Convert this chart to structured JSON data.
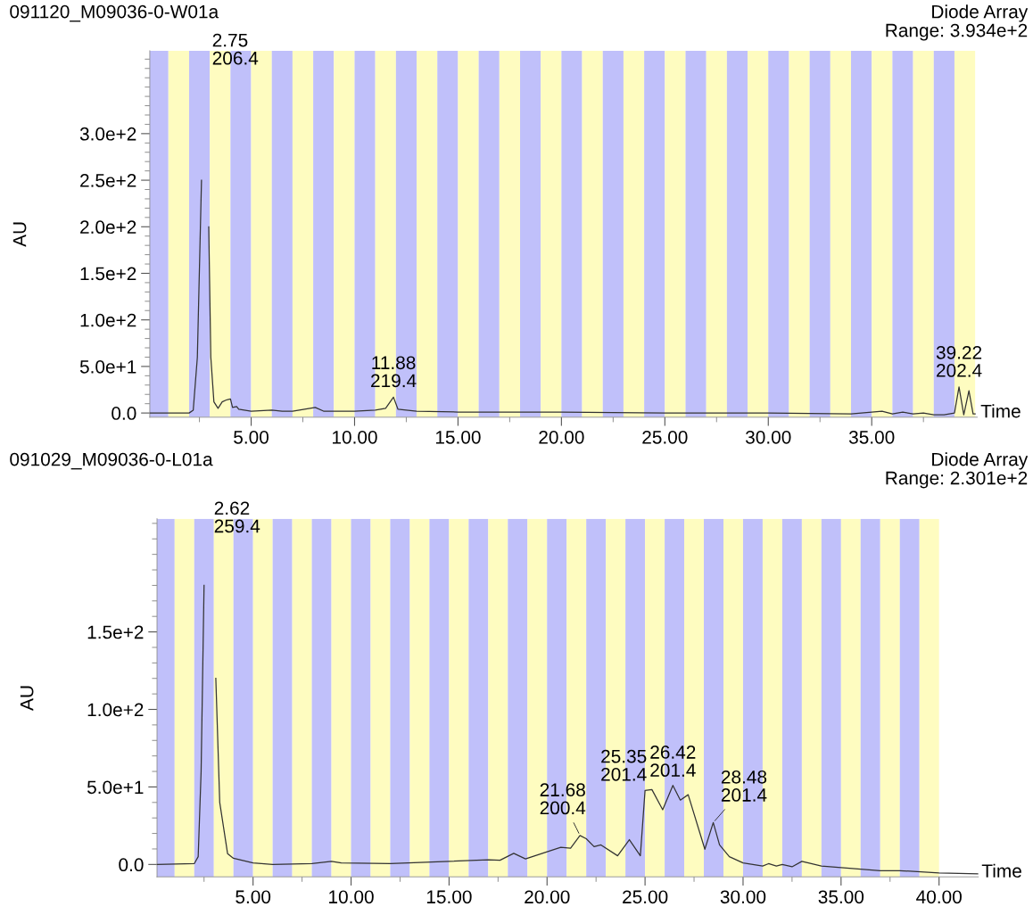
{
  "chart_data": [
    {
      "type": "line",
      "title": "091120_M09036-0-W01a",
      "subtitle": "Diode Array\nRange: 3.934e+2",
      "xlabel": "Time",
      "ylabel": "AU",
      "xlim": [
        0.1,
        40.1
      ],
      "ylim": [
        -4.5,
        389
      ],
      "xticks": [
        {
          "value": 2.5,
          "label": null
        },
        {
          "value": 5,
          "label": "5.00"
        },
        {
          "value": 7.5,
          "label": null
        },
        {
          "value": 10,
          "label": "10.00"
        },
        {
          "value": 12.5,
          "label": null
        },
        {
          "value": 15,
          "label": "15.00"
        },
        {
          "value": 17.5,
          "label": null
        },
        {
          "value": 20,
          "label": "20.00"
        },
        {
          "value": 22.5,
          "label": null
        },
        {
          "value": 25,
          "label": "25.00"
        },
        {
          "value": 27.5,
          "label": null
        },
        {
          "value": 30,
          "label": "30.00"
        },
        {
          "value": 32.5,
          "label": null
        },
        {
          "value": 35,
          "label": "35.00"
        },
        {
          "value": 37.5,
          "label": null
        }
      ],
      "yticks": [
        {
          "value": 0,
          "label": "0.0"
        },
        {
          "value": 50,
          "label": "5.0e+1"
        },
        {
          "value": 100,
          "label": "1.0e+2"
        },
        {
          "value": 150,
          "label": "1.5e+2"
        },
        {
          "value": 200,
          "label": "2.0e+2"
        },
        {
          "value": 250,
          "label": "2.5e+2"
        },
        {
          "value": 300,
          "label": "3.0e+2"
        },
        {
          "value": 10,
          "label": null
        },
        {
          "value": 20,
          "label": null
        },
        {
          "value": 30,
          "label": null
        },
        {
          "value": 40,
          "label": null
        },
        {
          "value": 60,
          "label": null
        },
        {
          "value": 70,
          "label": null
        },
        {
          "value": 80,
          "label": null
        },
        {
          "value": 90,
          "label": null
        },
        {
          "value": 110,
          "label": null
        },
        {
          "value": 120,
          "label": null
        },
        {
          "value": 130,
          "label": null
        },
        {
          "value": 140,
          "label": null
        },
        {
          "value": 160,
          "label": null
        },
        {
          "value": 170,
          "label": null
        },
        {
          "value": 180,
          "label": null
        },
        {
          "value": 190,
          "label": null
        },
        {
          "value": 210,
          "label": null
        },
        {
          "value": 220,
          "label": null
        },
        {
          "value": 230,
          "label": null
        },
        {
          "value": 240,
          "label": null
        },
        {
          "value": 260,
          "label": null
        },
        {
          "value": 270,
          "label": null
        },
        {
          "value": 280,
          "label": null
        },
        {
          "value": 290,
          "label": null
        },
        {
          "value": 310,
          "label": null
        },
        {
          "value": 320,
          "label": null
        },
        {
          "value": 330,
          "label": null
        },
        {
          "value": 340,
          "label": null
        },
        {
          "value": 350,
          "label": null
        },
        {
          "value": 360,
          "label": null
        },
        {
          "value": 370,
          "label": null
        },
        {
          "value": 380,
          "label": null
        }
      ],
      "series": [
        {
          "color": "#333333",
          "x": [
            0.1,
            2.0,
            2.2,
            2.4,
            2.6,
            2.75,
            2.85,
            2.95,
            3.05,
            3.2,
            3.4,
            3.6,
            3.8,
            4.0,
            4.1,
            4.3,
            4.4,
            5.0,
            6.0,
            6.5,
            7.0,
            8.1,
            8.5,
            9.0,
            10.0,
            11.0,
            11.5,
            11.88,
            12.1,
            13.0,
            15.0,
            20.0,
            25.0,
            30.0,
            34.0,
            35.5,
            36.0,
            36.5,
            37.0,
            37.5,
            38.0,
            38.5,
            39.0,
            39.22,
            39.45,
            39.7,
            39.9,
            40.0
          ],
          "values": [
            0,
            0,
            3,
            60,
            250,
            null,
            null,
            200,
            60,
            12,
            5,
            12,
            14,
            15,
            6,
            7,
            4,
            2,
            3,
            2,
            2,
            6,
            2,
            2,
            2,
            3,
            5,
            17,
            4,
            2,
            1,
            1,
            0,
            0,
            -1,
            2,
            -1,
            1,
            -1,
            0,
            -2,
            -2,
            0,
            28,
            -2,
            24,
            -1,
            -1
          ]
        }
      ],
      "annotations": [
        {
          "text": "2.75\n206.4",
          "x": 2.75,
          "y": 389
        },
        {
          "text": "11.88\n219.4",
          "x": 11.88,
          "y": 17
        },
        {
          "text": "39.22\n202.4",
          "x": 39.22,
          "y": 28
        }
      ],
      "bands": [
        {
          "axis": "x",
          "from": 0,
          "to": 1,
          "color": "#c0c0fa"
        },
        {
          "axis": "x",
          "from": 1,
          "to": 2,
          "color": "#fefcc0"
        },
        {
          "axis": "x",
          "from": 2,
          "to": 3,
          "color": "#c0c0fa"
        },
        {
          "axis": "x",
          "from": 3,
          "to": 4,
          "color": "#fefcc0"
        },
        {
          "axis": "x",
          "from": 4,
          "to": 5,
          "color": "#c0c0fa"
        },
        {
          "axis": "x",
          "from": 5,
          "to": 6,
          "color": "#fefcc0"
        },
        {
          "axis": "x",
          "from": 6,
          "to": 7,
          "color": "#c0c0fa"
        },
        {
          "axis": "x",
          "from": 7,
          "to": 8,
          "color": "#fefcc0"
        },
        {
          "axis": "x",
          "from": 8,
          "to": 9,
          "color": "#c0c0fa"
        },
        {
          "axis": "x",
          "from": 9,
          "to": 10,
          "color": "#fefcc0"
        },
        {
          "axis": "x",
          "from": 10,
          "to": 11,
          "color": "#c0c0fa"
        },
        {
          "axis": "x",
          "from": 11,
          "to": 12,
          "color": "#fefcc0"
        },
        {
          "axis": "x",
          "from": 12,
          "to": 13,
          "color": "#c0c0fa"
        },
        {
          "axis": "x",
          "from": 13,
          "to": 14,
          "color": "#fefcc0"
        },
        {
          "axis": "x",
          "from": 14,
          "to": 15,
          "color": "#c0c0fa"
        },
        {
          "axis": "x",
          "from": 15,
          "to": 16,
          "color": "#fefcc0"
        },
        {
          "axis": "x",
          "from": 16,
          "to": 17,
          "color": "#c0c0fa"
        },
        {
          "axis": "x",
          "from": 17,
          "to": 18,
          "color": "#fefcc0"
        },
        {
          "axis": "x",
          "from": 18,
          "to": 19,
          "color": "#c0c0fa"
        },
        {
          "axis": "x",
          "from": 19,
          "to": 20,
          "color": "#fefcc0"
        },
        {
          "axis": "x",
          "from": 20,
          "to": 21,
          "color": "#c0c0fa"
        },
        {
          "axis": "x",
          "from": 21,
          "to": 22,
          "color": "#fefcc0"
        },
        {
          "axis": "x",
          "from": 22,
          "to": 23,
          "color": "#c0c0fa"
        },
        {
          "axis": "x",
          "from": 23,
          "to": 24,
          "color": "#fefcc0"
        },
        {
          "axis": "x",
          "from": 24,
          "to": 25,
          "color": "#c0c0fa"
        },
        {
          "axis": "x",
          "from": 25,
          "to": 26,
          "color": "#fefcc0"
        },
        {
          "axis": "x",
          "from": 26,
          "to": 27,
          "color": "#c0c0fa"
        },
        {
          "axis": "x",
          "from": 27,
          "to": 28,
          "color": "#fefcc0"
        },
        {
          "axis": "x",
          "from": 28,
          "to": 29,
          "color": "#c0c0fa"
        },
        {
          "axis": "x",
          "from": 29,
          "to": 30,
          "color": "#fefcc0"
        },
        {
          "axis": "x",
          "from": 30,
          "to": 31,
          "color": "#c0c0fa"
        },
        {
          "axis": "x",
          "from": 31,
          "to": 32,
          "color": "#fefcc0"
        },
        {
          "axis": "x",
          "from": 32,
          "to": 33,
          "color": "#c0c0fa"
        },
        {
          "axis": "x",
          "from": 33,
          "to": 34,
          "color": "#fefcc0"
        },
        {
          "axis": "x",
          "from": 34,
          "to": 35,
          "color": "#c0c0fa"
        },
        {
          "axis": "x",
          "from": 35,
          "to": 36,
          "color": "#fefcc0"
        },
        {
          "axis": "x",
          "from": 36,
          "to": 37,
          "color": "#c0c0fa"
        },
        {
          "axis": "x",
          "from": 37,
          "to": 38,
          "color": "#fefcc0"
        },
        {
          "axis": "x",
          "from": 38,
          "to": 39,
          "color": "#c0c0fa"
        },
        {
          "axis": "x",
          "from": 39,
          "to": 40,
          "color": "#fefcc0"
        }
      ]
    },
    {
      "type": "line",
      "title": "091029_M09036-0-L01a",
      "subtitle": "Diode Array\nRange: 2.301e+2",
      "xlabel": "Time",
      "ylabel": "AU",
      "xlim": [
        0.1,
        42
      ],
      "ylim": [
        -8,
        223
      ],
      "xticks": [
        {
          "value": 2.5,
          "label": null
        },
        {
          "value": 5,
          "label": "5.00"
        },
        {
          "value": 7.5,
          "label": null
        },
        {
          "value": 10,
          "label": "10.00"
        },
        {
          "value": 12.5,
          "label": null
        },
        {
          "value": 15,
          "label": "15.00"
        },
        {
          "value": 17.5,
          "label": null
        },
        {
          "value": 20,
          "label": "20.00"
        },
        {
          "value": 22.5,
          "label": null
        },
        {
          "value": 25,
          "label": "25.00"
        },
        {
          "value": 27.5,
          "label": null
        },
        {
          "value": 30,
          "label": "30.00"
        },
        {
          "value": 32.5,
          "label": null
        },
        {
          "value": 35,
          "label": "35.00"
        },
        {
          "value": 37.5,
          "label": null
        },
        {
          "value": 40,
          "label": "40.00"
        }
      ],
      "yticks": [
        {
          "value": 0,
          "label": "0.0"
        },
        {
          "value": 50,
          "label": "5.0e+1"
        },
        {
          "value": 100,
          "label": "1.0e+2"
        },
        {
          "value": 150,
          "label": "1.5e+2"
        },
        {
          "value": 10,
          "label": null
        },
        {
          "value": 20,
          "label": null
        },
        {
          "value": 30,
          "label": null
        },
        {
          "value": 40,
          "label": null
        },
        {
          "value": 60,
          "label": null
        },
        {
          "value": 70,
          "label": null
        },
        {
          "value": 80,
          "label": null
        },
        {
          "value": 90,
          "label": null
        },
        {
          "value": 110,
          "label": null
        },
        {
          "value": 120,
          "label": null
        },
        {
          "value": 130,
          "label": null
        },
        {
          "value": 140,
          "label": null
        },
        {
          "value": 160,
          "label": null
        },
        {
          "value": 170,
          "label": null
        },
        {
          "value": 180,
          "label": null
        },
        {
          "value": 190,
          "label": null
        },
        {
          "value": 200,
          "label": null
        },
        {
          "value": 210,
          "label": null
        },
        {
          "value": 220,
          "label": null
        }
      ],
      "series": [
        {
          "color": "#333333",
          "x": [
            0.1,
            2.0,
            2.2,
            2.35,
            2.5,
            2.62,
            2.9,
            3.1,
            3.3,
            3.7,
            4.0,
            5.0,
            6.0,
            8.0,
            9.0,
            9.5,
            12.0,
            15.0,
            17.0,
            17.6,
            18.3,
            18.9,
            19.9,
            20.7,
            21.2,
            21.68,
            22.0,
            22.4,
            22.75,
            23.6,
            24.2,
            24.76,
            25.0,
            25.35,
            25.9,
            26.42,
            26.8,
            27.2,
            28.05,
            28.48,
            28.8,
            29.3,
            30.0,
            31.0,
            31.3,
            31.7,
            32.0,
            32.5,
            33.0,
            34.0,
            35.0,
            36.0,
            37.0,
            38.0,
            40.0,
            42.0
          ],
          "values": [
            0,
            0.5,
            5,
            60,
            180,
            null,
            null,
            120,
            40,
            7,
            4,
            1,
            0,
            0.5,
            2,
            1,
            0.5,
            2,
            3,
            2.7,
            7.2,
            3.6,
            7.8,
            11,
            10.5,
            18.7,
            16.6,
            11.5,
            12.6,
            5.6,
            16,
            5.6,
            47.7,
            48.3,
            35.3,
            51,
            41.5,
            45,
            9.8,
            27,
            12.6,
            5,
            1,
            -1,
            0.5,
            -1,
            0,
            -1.5,
            2,
            -1,
            -2,
            -3,
            -4,
            -4,
            -5.5,
            -6
          ]
        }
      ],
      "annotations": [
        {
          "text": "2.62\n259.4",
          "x": 2.62,
          "y": 223
        },
        {
          "text": "21.68\n200.4",
          "x": 21.68,
          "y": 18.7
        },
        {
          "text": "25.35\n201.4",
          "x": 25.35,
          "y": 48.3
        },
        {
          "text": "26.42\n201.4",
          "x": 26.42,
          "y": 51
        },
        {
          "text": "28.48\n201.4",
          "x": 28.48,
          "y": 27
        }
      ],
      "bands": [
        {
          "axis": "x",
          "from": 0,
          "to": 1,
          "color": "#c0c0fa"
        },
        {
          "axis": "x",
          "from": 1,
          "to": 2,
          "color": "#fefcc0"
        },
        {
          "axis": "x",
          "from": 2,
          "to": 3,
          "color": "#c0c0fa"
        },
        {
          "axis": "x",
          "from": 3,
          "to": 4,
          "color": "#fefcc0"
        },
        {
          "axis": "x",
          "from": 4,
          "to": 5,
          "color": "#c0c0fa"
        },
        {
          "axis": "x",
          "from": 5,
          "to": 6,
          "color": "#fefcc0"
        },
        {
          "axis": "x",
          "from": 6,
          "to": 7,
          "color": "#c0c0fa"
        },
        {
          "axis": "x",
          "from": 7,
          "to": 8,
          "color": "#fefcc0"
        },
        {
          "axis": "x",
          "from": 8,
          "to": 9,
          "color": "#c0c0fa"
        },
        {
          "axis": "x",
          "from": 9,
          "to": 10,
          "color": "#fefcc0"
        },
        {
          "axis": "x",
          "from": 10,
          "to": 11,
          "color": "#c0c0fa"
        },
        {
          "axis": "x",
          "from": 11,
          "to": 12,
          "color": "#fefcc0"
        },
        {
          "axis": "x",
          "from": 12,
          "to": 13,
          "color": "#c0c0fa"
        },
        {
          "axis": "x",
          "from": 13,
          "to": 14,
          "color": "#fefcc0"
        },
        {
          "axis": "x",
          "from": 14,
          "to": 15,
          "color": "#c0c0fa"
        },
        {
          "axis": "x",
          "from": 15,
          "to": 16,
          "color": "#fefcc0"
        },
        {
          "axis": "x",
          "from": 16,
          "to": 17,
          "color": "#c0c0fa"
        },
        {
          "axis": "x",
          "from": 17,
          "to": 18,
          "color": "#fefcc0"
        },
        {
          "axis": "x",
          "from": 18,
          "to": 19,
          "color": "#c0c0fa"
        },
        {
          "axis": "x",
          "from": 19,
          "to": 20,
          "color": "#fefcc0"
        },
        {
          "axis": "x",
          "from": 20,
          "to": 21,
          "color": "#c0c0fa"
        },
        {
          "axis": "x",
          "from": 21,
          "to": 22,
          "color": "#fefcc0"
        },
        {
          "axis": "x",
          "from": 22,
          "to": 23,
          "color": "#c0c0fa"
        },
        {
          "axis": "x",
          "from": 23,
          "to": 24,
          "color": "#fefcc0"
        },
        {
          "axis": "x",
          "from": 24,
          "to": 25,
          "color": "#c0c0fa"
        },
        {
          "axis": "x",
          "from": 25,
          "to": 26,
          "color": "#fefcc0"
        },
        {
          "axis": "x",
          "from": 26,
          "to": 27,
          "color": "#c0c0fa"
        },
        {
          "axis": "x",
          "from": 27,
          "to": 28,
          "color": "#fefcc0"
        },
        {
          "axis": "x",
          "from": 28,
          "to": 29,
          "color": "#c0c0fa"
        },
        {
          "axis": "x",
          "from": 29,
          "to": 30,
          "color": "#fefcc0"
        },
        {
          "axis": "x",
          "from": 30,
          "to": 31,
          "color": "#c0c0fa"
        },
        {
          "axis": "x",
          "from": 31,
          "to": 32,
          "color": "#fefcc0"
        },
        {
          "axis": "x",
          "from": 32,
          "to": 33,
          "color": "#c0c0fa"
        },
        {
          "axis": "x",
          "from": 33,
          "to": 34,
          "color": "#fefcc0"
        },
        {
          "axis": "x",
          "from": 34,
          "to": 35,
          "color": "#c0c0fa"
        },
        {
          "axis": "x",
          "from": 35,
          "to": 36,
          "color": "#fefcc0"
        },
        {
          "axis": "x",
          "from": 36,
          "to": 37,
          "color": "#c0c0fa"
        },
        {
          "axis": "x",
          "from": 37,
          "to": 38,
          "color": "#fefcc0"
        },
        {
          "axis": "x",
          "from": 38,
          "to": 39,
          "color": "#c0c0fa"
        },
        {
          "axis": "x",
          "from": 39,
          "to": 40,
          "color": "#fefcc0"
        }
      ]
    }
  ]
}
